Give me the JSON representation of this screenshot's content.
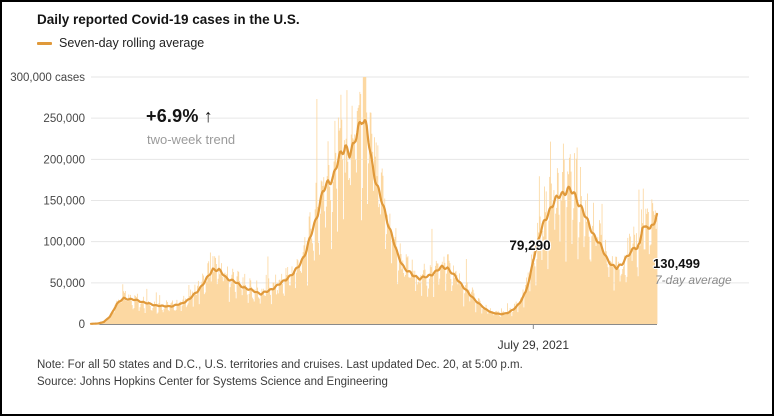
{
  "chart_data": {
    "type": "bar+line",
    "title": "Daily reported Covid-19 cases in the U.S.",
    "legend": [
      {
        "label": "Seven-day rolling average",
        "color": "#e0993a"
      }
    ],
    "colors": {
      "bars": "#fcd8a2",
      "line": "#e0993a",
      "grid": "#e6e6e6",
      "baseline": "#161616",
      "axis_text": "#474747"
    },
    "y_axis": {
      "min": 0,
      "max": 300000,
      "gridlines": true,
      "ticks": [
        {
          "value": 0,
          "label": "0"
        },
        {
          "value": 50000,
          "label": "50,000"
        },
        {
          "value": 100000,
          "label": "100,000"
        },
        {
          "value": 150000,
          "label": "150,000"
        },
        {
          "value": 200000,
          "label": "200,000"
        },
        {
          "value": 250000,
          "label": "250,000"
        },
        {
          "value": 300000,
          "label": "300,000 cases"
        }
      ]
    },
    "x_axis": {
      "total_days": 659,
      "tick_day": 515,
      "tick_label": "July 29, 2021"
    },
    "annotations": {
      "trend_value": "+6.9% ↑",
      "trend_label": "two-week trend",
      "point_value": "79,290",
      "point_day": 515,
      "latest_value": "130,499",
      "latest_label": "7-day average"
    },
    "series": [
      {
        "name": "Daily reported cases",
        "render": "bar",
        "model": {
          "weekly_pattern": [
            -0.3,
            -0.16,
            0.06,
            0.13,
            0.15,
            0.09,
            -0.06
          ],
          "noise": 0.45,
          "spike_prob": 0.045,
          "spike_boost": 0.55
        }
      },
      {
        "name": "Seven-day rolling average",
        "render": "line",
        "keyframes": [
          [
            0,
            200
          ],
          [
            8,
            600
          ],
          [
            15,
            2500
          ],
          [
            22,
            9000
          ],
          [
            30,
            24000
          ],
          [
            38,
            31500
          ],
          [
            46,
            30000
          ],
          [
            55,
            28500
          ],
          [
            64,
            25500
          ],
          [
            75,
            22800
          ],
          [
            85,
            21500
          ],
          [
            95,
            21800
          ],
          [
            105,
            24500
          ],
          [
            115,
            30500
          ],
          [
            124,
            40000
          ],
          [
            133,
            52000
          ],
          [
            142,
            66800
          ],
          [
            149,
            65500
          ],
          [
            157,
            56500
          ],
          [
            165,
            52500
          ],
          [
            173,
            47500
          ],
          [
            182,
            42500
          ],
          [
            190,
            40000
          ],
          [
            198,
            36500
          ],
          [
            205,
            39500
          ],
          [
            212,
            43500
          ],
          [
            220,
            48500
          ],
          [
            228,
            55500
          ],
          [
            236,
            61500
          ],
          [
            244,
            74500
          ],
          [
            251,
            89000
          ],
          [
            258,
            115000
          ],
          [
            264,
            135000
          ],
          [
            270,
            160000
          ],
          [
            276,
            172500
          ],
          [
            282,
            178500
          ],
          [
            289,
            201000
          ],
          [
            296,
            218000
          ],
          [
            301,
            205500
          ],
          [
            306,
            215000
          ],
          [
            311,
            240000
          ],
          [
            316,
            250500
          ],
          [
            321,
            236000
          ],
          [
            327,
            196500
          ],
          [
            333,
            168500
          ],
          [
            341,
            139500
          ],
          [
            349,
            112500
          ],
          [
            357,
            83500
          ],
          [
            365,
            68000
          ],
          [
            374,
            59500
          ],
          [
            383,
            55500
          ],
          [
            392,
            57500
          ],
          [
            401,
            63500
          ],
          [
            409,
            69000
          ],
          [
            415,
            68500
          ],
          [
            423,
            58500
          ],
          [
            432,
            47500
          ],
          [
            441,
            35500
          ],
          [
            450,
            26500
          ],
          [
            459,
            18000
          ],
          [
            468,
            13500
          ],
          [
            477,
            11800
          ],
          [
            485,
            13500
          ],
          [
            492,
            17500
          ],
          [
            499,
            25500
          ],
          [
            506,
            38500
          ],
          [
            511,
            56000
          ],
          [
            515,
            79290
          ],
          [
            521,
            103000
          ],
          [
            528,
            124500
          ],
          [
            536,
            143500
          ],
          [
            546,
            156500
          ],
          [
            555,
            163500
          ],
          [
            562,
            158500
          ],
          [
            570,
            143500
          ],
          [
            578,
            124500
          ],
          [
            586,
            107500
          ],
          [
            594,
            93500
          ],
          [
            601,
            79500
          ],
          [
            607,
            70500
          ],
          [
            612,
            67500
          ],
          [
            618,
            73500
          ],
          [
            624,
            81500
          ],
          [
            629,
            86500
          ],
          [
            633,
            94500
          ],
          [
            636,
            92500
          ],
          [
            639,
            98500
          ],
          [
            642,
            117500
          ],
          [
            645,
            114500
          ],
          [
            648,
            119500
          ],
          [
            651,
            116500
          ],
          [
            654,
            121500
          ],
          [
            657,
            126500
          ],
          [
            659,
            130499
          ]
        ]
      }
    ]
  },
  "footer": {
    "note": "Note: For all 50 states and D.C., U.S. territories and cruises. Last updated Dec. 20, at 5:00 p.m.",
    "source": "Source: Johns Hopkins Center for Systems Science and Engineering"
  }
}
